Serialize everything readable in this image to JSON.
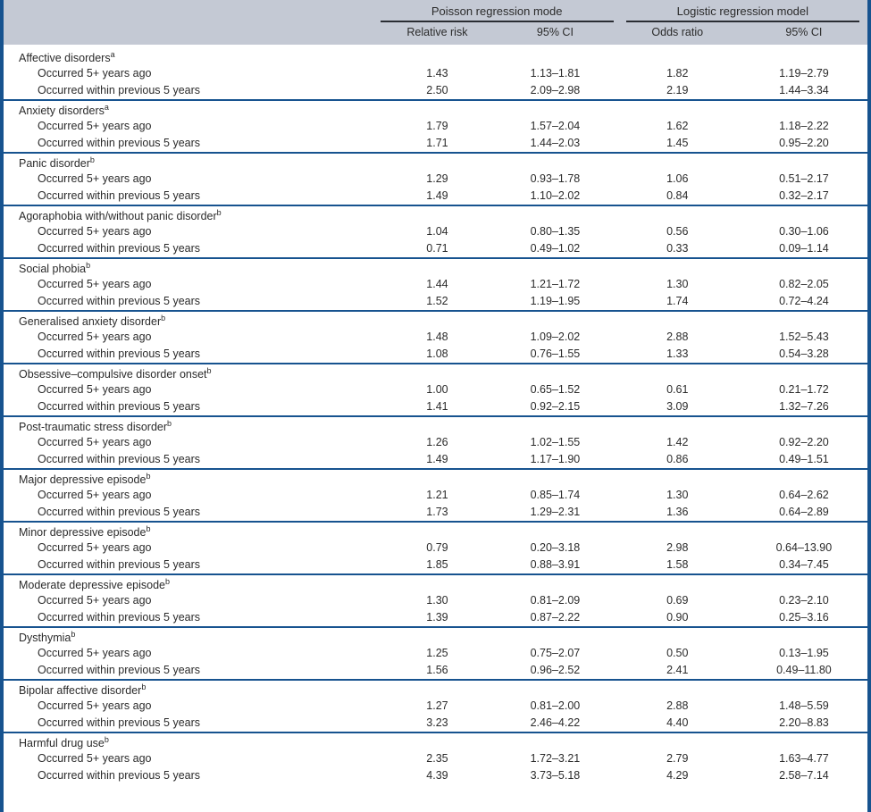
{
  "colors": {
    "border_navy": "#17538f",
    "header_background": "#c4c9d4",
    "text": "#2b2b2b",
    "header_rule": "#2a2d33"
  },
  "table": {
    "header": {
      "groups": [
        {
          "label": "Poisson regression mode",
          "columns": [
            "Relative risk",
            "95% CI"
          ]
        },
        {
          "label": "Logistic regression model",
          "columns": [
            "Odds ratio",
            "95% CI"
          ]
        }
      ]
    },
    "sections": [
      {
        "name": "Affective disorders",
        "footnote": "a",
        "rows": [
          {
            "label": "Occurred 5+ years ago",
            "values": [
              "1.43",
              "1.13–1.81",
              "1.82",
              "1.19–2.79"
            ]
          },
          {
            "label": "Occurred within previous 5 years",
            "values": [
              "2.50",
              "2.09–2.98",
              "2.19",
              "1.44–3.34"
            ]
          }
        ]
      },
      {
        "name": "Anxiety disorders",
        "footnote": "a",
        "rows": [
          {
            "label": "Occurred 5+ years ago",
            "values": [
              "1.79",
              "1.57–2.04",
              "1.62",
              "1.18–2.22"
            ]
          },
          {
            "label": "Occurred within previous 5 years",
            "values": [
              "1.71",
              "1.44–2.03",
              "1.45",
              "0.95–2.20"
            ]
          }
        ]
      },
      {
        "name": "Panic disorder",
        "footnote": "b",
        "rows": [
          {
            "label": "Occurred 5+ years ago",
            "values": [
              "1.29",
              "0.93–1.78",
              "1.06",
              "0.51–2.17"
            ]
          },
          {
            "label": "Occurred within previous 5 years",
            "values": [
              "1.49",
              "1.10–2.02",
              "0.84",
              "0.32–2.17"
            ]
          }
        ]
      },
      {
        "name": "Agoraphobia with/without panic disorder",
        "footnote": "b",
        "rows": [
          {
            "label": "Occurred 5+ years ago",
            "values": [
              "1.04",
              "0.80–1.35",
              "0.56",
              "0.30–1.06"
            ]
          },
          {
            "label": "Occurred within previous 5 years",
            "values": [
              "0.71",
              "0.49–1.02",
              "0.33",
              "0.09–1.14"
            ]
          }
        ]
      },
      {
        "name": "Social phobia",
        "footnote": "b",
        "rows": [
          {
            "label": "Occurred 5+ years ago",
            "values": [
              "1.44",
              "1.21–1.72",
              "1.30",
              "0.82–2.05"
            ]
          },
          {
            "label": "Occurred within previous 5 years",
            "values": [
              "1.52",
              "1.19–1.95",
              "1.74",
              "0.72–4.24"
            ]
          }
        ]
      },
      {
        "name": "Generalised anxiety disorder",
        "footnote": "b",
        "rows": [
          {
            "label": "Occurred 5+ years ago",
            "values": [
              "1.48",
              "1.09–2.02",
              "2.88",
              "1.52–5.43"
            ]
          },
          {
            "label": "Occurred within previous 5 years",
            "values": [
              "1.08",
              "0.76–1.55",
              "1.33",
              "0.54–3.28"
            ]
          }
        ]
      },
      {
        "name": "Obsessive–compulsive disorder onset",
        "footnote": "b",
        "rows": [
          {
            "label": "Occurred 5+ years ago",
            "values": [
              "1.00",
              "0.65–1.52",
              "0.61",
              "0.21–1.72"
            ]
          },
          {
            "label": "Occurred within previous 5 years",
            "values": [
              "1.41",
              "0.92–2.15",
              "3.09",
              "1.32–7.26"
            ]
          }
        ]
      },
      {
        "name": "Post-traumatic stress disorder",
        "footnote": "b",
        "rows": [
          {
            "label": "Occurred 5+ years ago",
            "values": [
              "1.26",
              "1.02–1.55",
              "1.42",
              "0.92–2.20"
            ]
          },
          {
            "label": "Occurred within previous 5 years",
            "values": [
              "1.49",
              "1.17–1.90",
              "0.86",
              "0.49–1.51"
            ]
          }
        ]
      },
      {
        "name": "Major depressive episode",
        "footnote": "b",
        "rows": [
          {
            "label": "Occurred 5+ years ago",
            "values": [
              "1.21",
              "0.85–1.74",
              "1.30",
              "0.64–2.62"
            ]
          },
          {
            "label": "Occurred within previous 5 years",
            "values": [
              "1.73",
              "1.29–2.31",
              "1.36",
              "0.64–2.89"
            ]
          }
        ]
      },
      {
        "name": "Minor depressive episode",
        "footnote": "b",
        "rows": [
          {
            "label": "Occurred 5+ years ago",
            "values": [
              "0.79",
              "0.20–3.18",
              "2.98",
              "0.64–13.90"
            ]
          },
          {
            "label": "Occurred within previous 5 years",
            "values": [
              "1.85",
              "0.88–3.91",
              "1.58",
              "0.34–7.45"
            ]
          }
        ]
      },
      {
        "name": "Moderate depressive episode",
        "footnote": "b",
        "rows": [
          {
            "label": "Occurred 5+ years ago",
            "values": [
              "1.30",
              "0.81–2.09",
              "0.69",
              "0.23–2.10"
            ]
          },
          {
            "label": "Occurred within previous 5 years",
            "values": [
              "1.39",
              "0.87–2.22",
              "0.90",
              "0.25–3.16"
            ]
          }
        ]
      },
      {
        "name": "Dysthymia",
        "footnote": "b",
        "rows": [
          {
            "label": "Occurred 5+ years ago",
            "values": [
              "1.25",
              "0.75–2.07",
              "0.50",
              "0.13–1.95"
            ]
          },
          {
            "label": "Occurred within previous 5 years",
            "values": [
              "1.56",
              "0.96–2.52",
              "2.41",
              "0.49–11.80"
            ]
          }
        ]
      },
      {
        "name": "Bipolar affective disorder",
        "footnote": "b",
        "rows": [
          {
            "label": "Occurred 5+ years ago",
            "values": [
              "1.27",
              "0.81–2.00",
              "2.88",
              "1.48–5.59"
            ]
          },
          {
            "label": "Occurred within previous 5 years",
            "values": [
              "3.23",
              "2.46–4.22",
              "4.40",
              "2.20–8.83"
            ]
          }
        ]
      },
      {
        "name": "Harmful drug use",
        "footnote": "b",
        "rows": [
          {
            "label": "Occurred 5+ years ago",
            "values": [
              "2.35",
              "1.72–3.21",
              "2.79",
              "1.63–4.77"
            ]
          },
          {
            "label": "Occurred within previous 5 years",
            "values": [
              "4.39",
              "3.73–5.18",
              "4.29",
              "2.58–7.14"
            ]
          }
        ]
      }
    ]
  }
}
